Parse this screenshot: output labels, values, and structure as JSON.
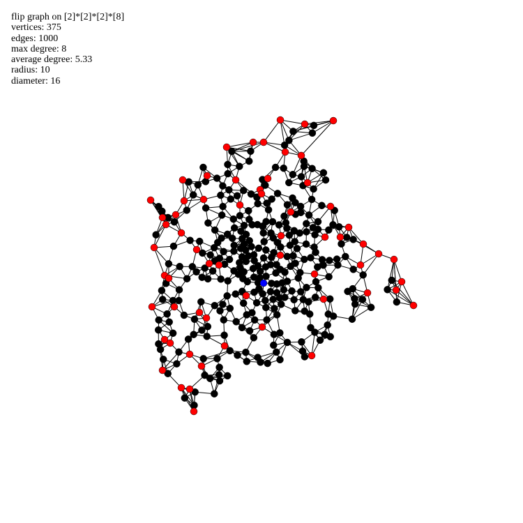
{
  "info": {
    "title": "flip graph on [2]*[2]*[2]*[8]",
    "vertices": "vertices: 375",
    "edges": "edges: 1000",
    "max_degree": "max degree: 8",
    "average_degree": "average degree: 5.33",
    "radius": "radius: 10",
    "diameter": "diameter: 16"
  },
  "graph": {
    "vertex_count": 375,
    "edge_count": 1000,
    "colors": {
      "background": "#ffffff",
      "edge": "#000000",
      "vertex_default": "#000000",
      "vertex_highlight": "#ff0000",
      "vertex_center": "#0000ff"
    }
  }
}
